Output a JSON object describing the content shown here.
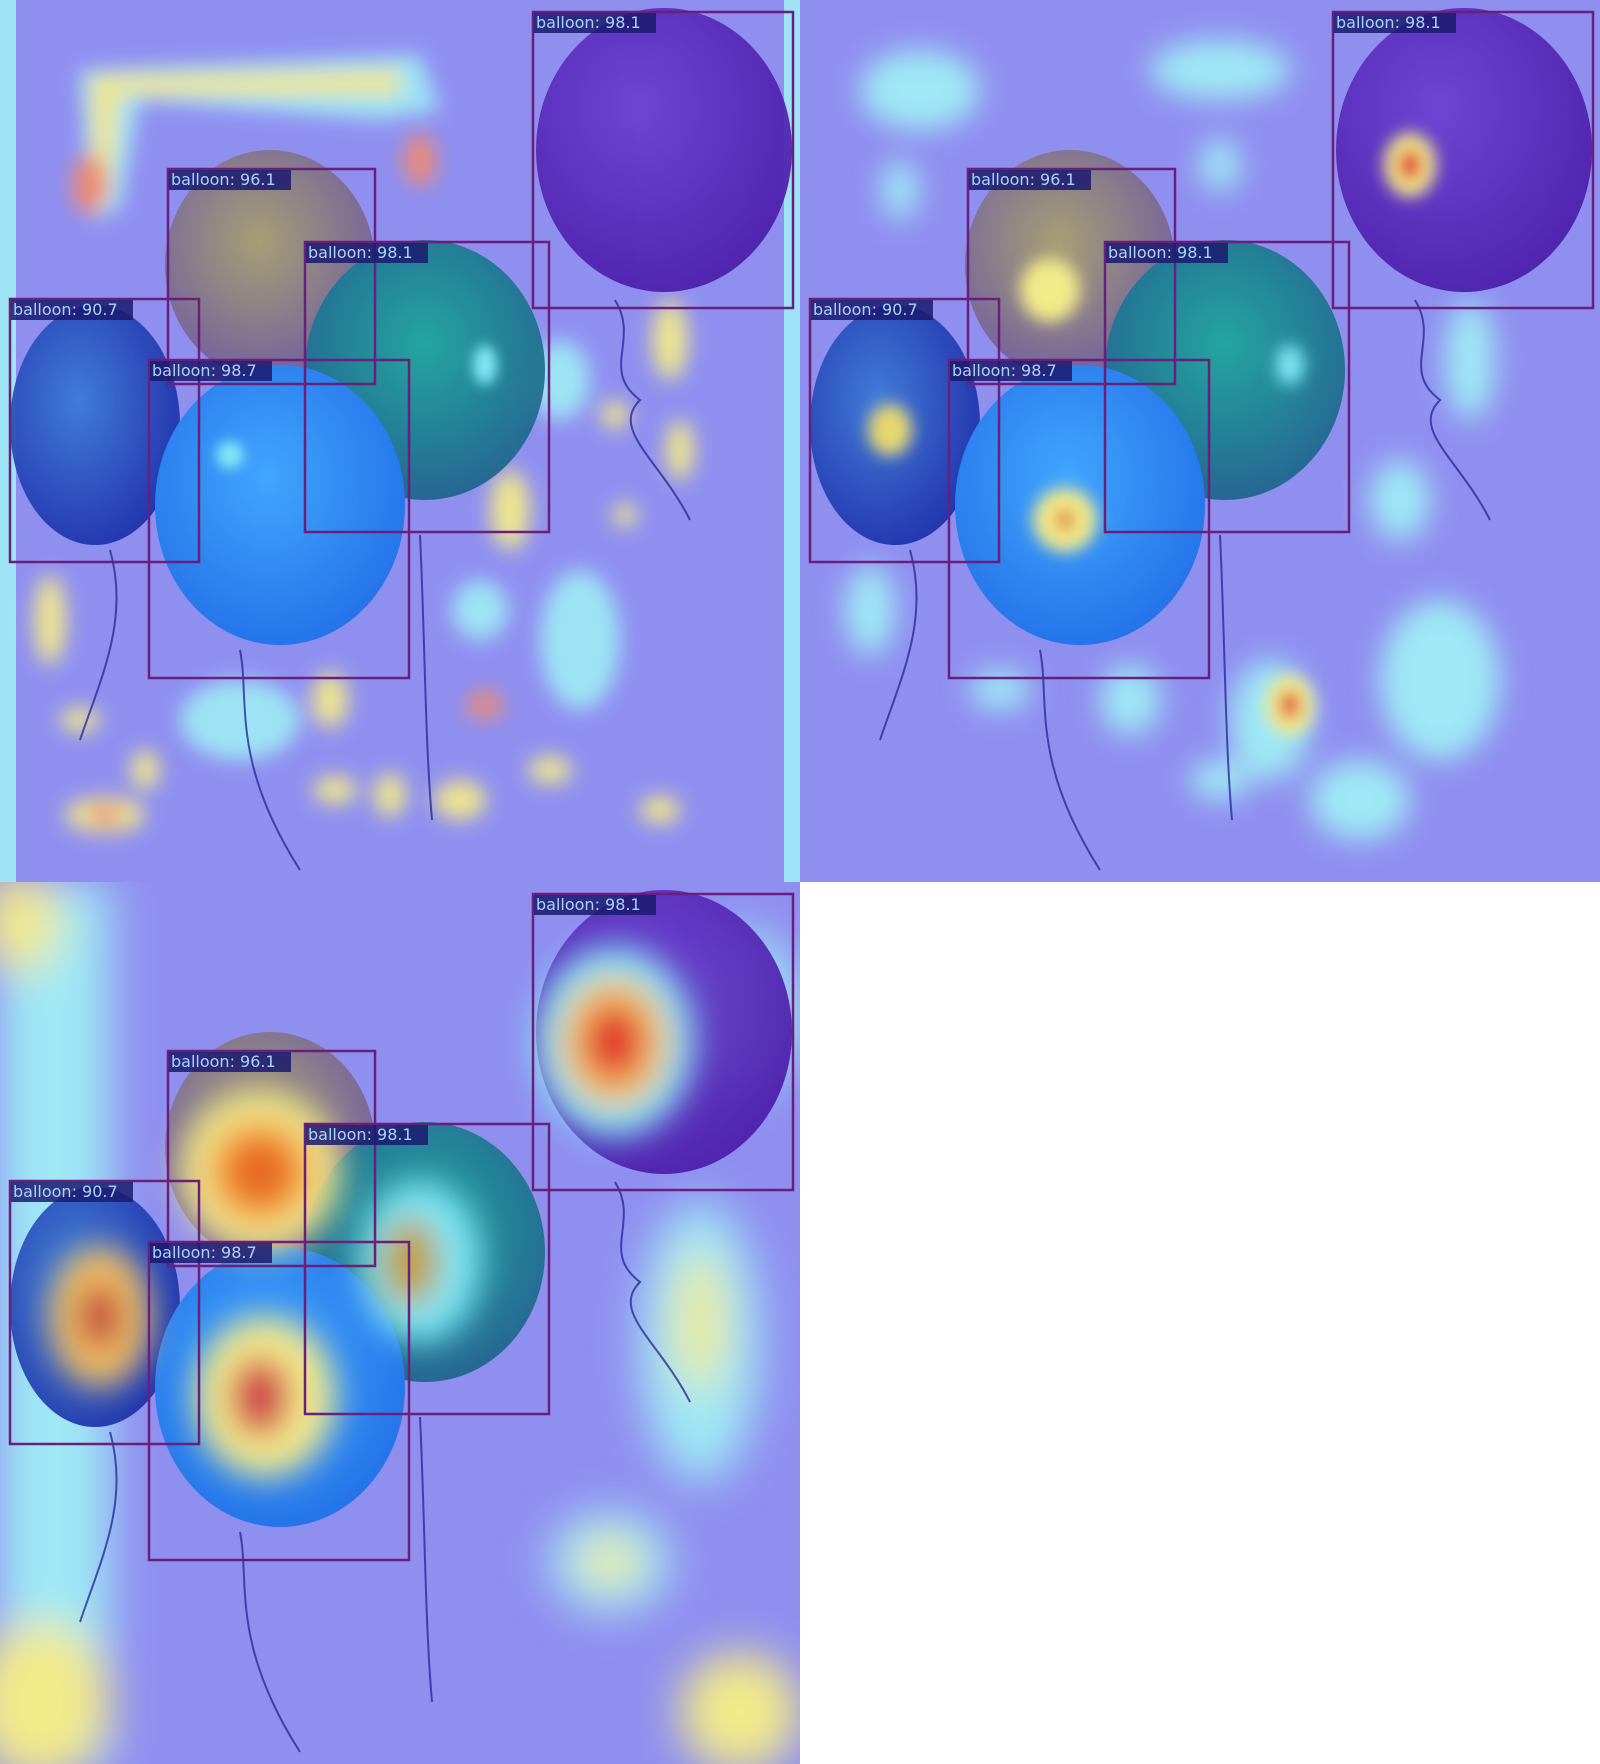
{
  "detections": [
    {
      "label": "balloon: 98.1"
    },
    {
      "label": "balloon: 96.1"
    },
    {
      "label": "balloon: 98.1"
    },
    {
      "label": "balloon: 90.7"
    },
    {
      "label": "balloon: 98.7"
    }
  ],
  "colors": {
    "box_stroke": "#6a1f7a",
    "label_bg": "#1b1a6e",
    "label_text": "#a8d4ff",
    "heat_base": "#8f8ff0",
    "heat_cyan": "#7fe6f6",
    "heat_yellow": "#f6f08a",
    "heat_red": "#e0302c"
  },
  "panels": [
    {
      "name": "heatmap-panel-1"
    },
    {
      "name": "heatmap-panel-2"
    },
    {
      "name": "heatmap-panel-3"
    }
  ]
}
